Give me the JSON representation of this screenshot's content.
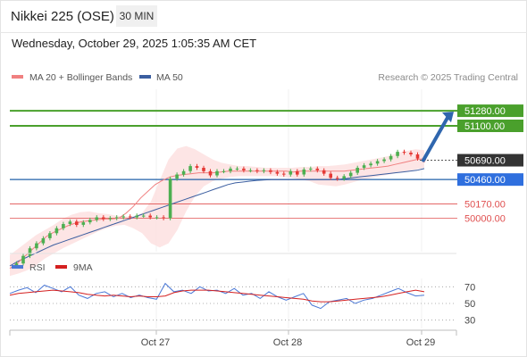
{
  "header": {
    "title": "Nikkei 225 (OSE)",
    "interval": "30 MIN",
    "datetime": "Wednesday, October 29, 2025 1:05:35 AM CET"
  },
  "legend": {
    "ma20": "MA 20 + Bollinger Bands",
    "ma50": "MA 50",
    "credit": "Research © 2025 Trading Central",
    "rsi": "RSI",
    "rsi_ma": "9MA"
  },
  "colors": {
    "candle_up": "#4caf50",
    "candle_down": "#e53935",
    "ma20": "#f08080",
    "bollinger_fill": "#fde0e0",
    "ma50": "#3b5ea0",
    "resistance_line": "#4aa02c",
    "pivot_line": "#2060a8",
    "support_line": "#e05050",
    "rsi_line": "#4a78d6",
    "rsi_ma_line": "#d42020",
    "arrow": "#2f66ae",
    "pivot_label_bg": "#2f6fde",
    "last_price_bg": "#333333"
  },
  "chart_data": [
    {
      "type": "line",
      "subtype": "candlestick",
      "title": "Nikkei 225 (OSE)",
      "interval": "30 MIN",
      "x_ticks": [
        "Oct 27",
        "Oct 28",
        "Oct 29"
      ],
      "y_axis_side": "right",
      "ylim": [
        49600,
        51600
      ],
      "grid": true,
      "last_price": 50690,
      "price_path": [
        49440,
        49460,
        49550,
        49640,
        49700,
        49760,
        49820,
        49880,
        49930,
        49960,
        49920,
        49950,
        49980,
        50010,
        49990,
        50000,
        50010,
        50020,
        50010,
        50030,
        50030,
        50010,
        50010,
        50000,
        50470,
        50520,
        50560,
        50620,
        50600,
        50560,
        50510,
        50560,
        50560,
        50590,
        50590,
        50570,
        50570,
        50560,
        50570,
        50550,
        50530,
        50520,
        50560,
        50520,
        50580,
        50590,
        50570,
        50530,
        50480,
        50470,
        50500,
        50540,
        50600,
        50630,
        50650,
        50680,
        50700,
        50740,
        50790,
        50780,
        50760,
        50710,
        50690
      ],
      "ma20_path": [
        49400,
        49460,
        49540,
        49620,
        49700,
        49780,
        49830,
        49870,
        49910,
        49940,
        49960,
        49970,
        49980,
        49990,
        49990,
        50000,
        50060,
        50140,
        50240,
        50320,
        50400,
        50450,
        50490,
        50510,
        50520,
        50530,
        50540,
        50540,
        50540,
        50550,
        50560,
        50560,
        50560,
        50560,
        50560,
        50560,
        50560,
        50560,
        50560,
        50550,
        50560,
        50560,
        50560,
        50560,
        50560,
        50560,
        50560,
        50570,
        50580,
        50590,
        50600,
        50610,
        50620,
        50640,
        50660,
        50680,
        50700,
        50710
      ],
      "ma50_path": [
        49430,
        49480,
        49520,
        49560,
        49600,
        49640,
        49680,
        49710,
        49740,
        49770,
        49800,
        49830,
        49860,
        49890,
        49920,
        49950,
        49980,
        50010,
        50040,
        50070,
        50100,
        50130,
        50160,
        50190,
        50220,
        50250,
        50280,
        50310,
        50340,
        50370,
        50400,
        50420,
        50430,
        50440,
        50450,
        50455,
        50460,
        50460,
        50460,
        50460,
        50460,
        50460,
        50460,
        50460,
        50460,
        50460,
        50470,
        50480,
        50490,
        50500,
        50510,
        50520,
        50530,
        50540,
        50550,
        50560,
        50570,
        50590
      ],
      "bollinger_upper": [
        49560,
        49640,
        49720,
        49800,
        49860,
        49920,
        49990,
        50040,
        50070,
        50080,
        50060,
        50050,
        50030,
        50020,
        50020,
        50060,
        50200,
        50450,
        50700,
        50830,
        50860,
        50820,
        50760,
        50700,
        50660,
        50640,
        50620,
        50620,
        50610,
        50600,
        50600,
        50600,
        50600,
        50610,
        50610,
        50620,
        50620,
        50630,
        50640,
        50660,
        50680,
        50700,
        50720,
        50740,
        50780,
        50800,
        50820,
        50810
      ],
      "bollinger_lower": [
        49310,
        49340,
        49380,
        49440,
        49520,
        49580,
        49640,
        49690,
        49740,
        49790,
        49840,
        49880,
        49910,
        49920,
        49880,
        49820,
        49700,
        49650,
        49700,
        49860,
        50080,
        50260,
        50380,
        50440,
        50470,
        50490,
        50500,
        50500,
        50500,
        50500,
        50500,
        50490,
        50480,
        50460,
        50440,
        50400,
        50390,
        50380,
        50400,
        50430,
        50460,
        50480,
        50500,
        50520,
        50540,
        50560,
        50580,
        50600
      ],
      "levels": [
        {
          "value": 51280,
          "label": "51280.00",
          "kind": "resistance"
        },
        {
          "value": 51100,
          "label": "51100.00",
          "kind": "resistance"
        },
        {
          "value": 50690,
          "label": "50690.00",
          "kind": "last"
        },
        {
          "value": 50460,
          "label": "50460.00",
          "kind": "pivot"
        },
        {
          "value": 50170,
          "label": "50170.00",
          "kind": "support"
        },
        {
          "value": 50000,
          "label": "50000.00",
          "kind": "support"
        }
      ],
      "arrow": {
        "from": 50690,
        "to": 51280
      }
    },
    {
      "type": "line",
      "title": "RSI",
      "series": [
        {
          "name": "RSI",
          "values": [
            62,
            66,
            69,
            63,
            72,
            68,
            64,
            70,
            60,
            56,
            62,
            64,
            58,
            62,
            57,
            60,
            57,
            55,
            74,
            64,
            66,
            62,
            70,
            65,
            66,
            62,
            68,
            60,
            62,
            56,
            64,
            58,
            54,
            58,
            62,
            48,
            44,
            52,
            54,
            56,
            50,
            54,
            56,
            60,
            64,
            68,
            63,
            59,
            60
          ]
        },
        {
          "name": "9MA",
          "values": [
            60,
            62,
            63,
            64,
            65,
            66,
            65,
            64,
            63,
            61,
            60,
            59,
            60,
            59,
            58,
            59,
            58,
            58,
            59,
            63,
            65,
            66,
            66,
            66,
            65,
            64,
            63,
            62,
            61,
            60,
            59,
            58,
            57,
            56,
            55,
            53,
            52,
            52,
            53,
            54,
            55,
            56,
            57,
            58,
            60,
            62,
            64,
            66,
            64
          ]
        }
      ],
      "yticks": [
        70,
        50,
        30
      ],
      "ylim": [
        20,
        80
      ]
    }
  ]
}
